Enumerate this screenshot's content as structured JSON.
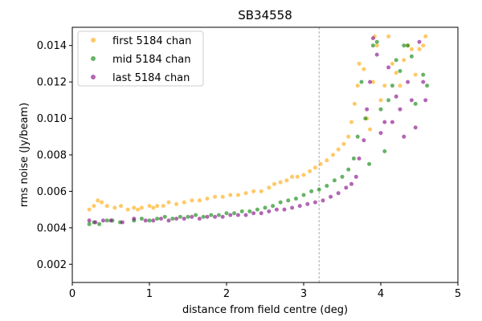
{
  "chart_data": {
    "type": "scatter",
    "title": "SB34558",
    "xlabel": "distance from field centre (deg)",
    "ylabel": "rms noise (Jy/beam)",
    "xlim": [
      0,
      5
    ],
    "ylim": [
      0.001,
      0.015
    ],
    "xticks": [
      "0",
      "1",
      "2",
      "3",
      "4",
      "5"
    ],
    "yticks": [
      "0.002",
      "0.004",
      "0.006",
      "0.008",
      "0.010",
      "0.012",
      "0.014"
    ],
    "grid": false,
    "legend_position": "upper-left",
    "vline": {
      "x": 3.2,
      "style": "dashed",
      "color": "#aaaaaa"
    },
    "series": [
      {
        "name": "first 5184 chan",
        "color": "#FFA500",
        "points": [
          [
            0.22,
            0.005
          ],
          [
            0.28,
            0.0052
          ],
          [
            0.33,
            0.0055
          ],
          [
            0.38,
            0.0054
          ],
          [
            0.45,
            0.0052
          ],
          [
            0.55,
            0.0051
          ],
          [
            0.63,
            0.0052
          ],
          [
            0.72,
            0.005
          ],
          [
            0.8,
            0.0051
          ],
          [
            0.85,
            0.005
          ],
          [
            0.9,
            0.0051
          ],
          [
            1.0,
            0.0052
          ],
          [
            1.05,
            0.0051
          ],
          [
            1.1,
            0.0052
          ],
          [
            1.18,
            0.0052
          ],
          [
            1.25,
            0.0054
          ],
          [
            1.35,
            0.0053
          ],
          [
            1.45,
            0.0054
          ],
          [
            1.55,
            0.0055
          ],
          [
            1.65,
            0.0055
          ],
          [
            1.75,
            0.0056
          ],
          [
            1.85,
            0.0057
          ],
          [
            1.95,
            0.0057
          ],
          [
            2.05,
            0.0058
          ],
          [
            2.15,
            0.0058
          ],
          [
            2.25,
            0.0059
          ],
          [
            2.35,
            0.006
          ],
          [
            2.45,
            0.006
          ],
          [
            2.55,
            0.0062
          ],
          [
            2.62,
            0.0064
          ],
          [
            2.7,
            0.0065
          ],
          [
            2.78,
            0.0066
          ],
          [
            2.85,
            0.0068
          ],
          [
            2.92,
            0.0068
          ],
          [
            3.0,
            0.0069
          ],
          [
            3.08,
            0.0071
          ],
          [
            3.15,
            0.0073
          ],
          [
            3.22,
            0.0075
          ],
          [
            3.3,
            0.0077
          ],
          [
            3.38,
            0.008
          ],
          [
            3.45,
            0.0083
          ],
          [
            3.52,
            0.0086
          ],
          [
            3.58,
            0.009
          ],
          [
            3.62,
            0.0098
          ],
          [
            3.66,
            0.0108
          ],
          [
            3.7,
            0.0118
          ],
          [
            3.72,
            0.013
          ],
          [
            3.78,
            0.0127
          ],
          [
            3.82,
            0.01
          ],
          [
            3.86,
            0.0094
          ],
          [
            3.9,
            0.012
          ],
          [
            3.92,
            0.0145
          ],
          [
            3.95,
            0.014
          ],
          [
            4.0,
            0.011
          ],
          [
            4.05,
            0.0118
          ],
          [
            4.1,
            0.0145
          ],
          [
            4.15,
            0.013
          ],
          [
            4.2,
            0.0125
          ],
          [
            4.25,
            0.0118
          ],
          [
            4.3,
            0.0132
          ],
          [
            4.35,
            0.014
          ],
          [
            4.4,
            0.0138
          ],
          [
            4.45,
            0.0124
          ],
          [
            4.5,
            0.0138
          ],
          [
            4.55,
            0.014
          ],
          [
            4.58,
            0.0145
          ]
        ]
      },
      {
        "name": "mid 5184 chan",
        "color": "#008000",
        "points": [
          [
            0.22,
            0.0042
          ],
          [
            0.28,
            0.0043
          ],
          [
            0.35,
            0.0042
          ],
          [
            0.45,
            0.0044
          ],
          [
            0.52,
            0.0044
          ],
          [
            0.62,
            0.0043
          ],
          [
            0.8,
            0.0044
          ],
          [
            0.9,
            0.0045
          ],
          [
            1.0,
            0.0044
          ],
          [
            1.1,
            0.0045
          ],
          [
            1.2,
            0.0046
          ],
          [
            1.3,
            0.0045
          ],
          [
            1.4,
            0.0046
          ],
          [
            1.5,
            0.0046
          ],
          [
            1.6,
            0.0047
          ],
          [
            1.7,
            0.0046
          ],
          [
            1.8,
            0.0047
          ],
          [
            1.9,
            0.0047
          ],
          [
            2.0,
            0.0048
          ],
          [
            2.1,
            0.0048
          ],
          [
            2.2,
            0.0049
          ],
          [
            2.3,
            0.0049
          ],
          [
            2.4,
            0.005
          ],
          [
            2.5,
            0.0051
          ],
          [
            2.6,
            0.0052
          ],
          [
            2.7,
            0.0054
          ],
          [
            2.8,
            0.0055
          ],
          [
            2.9,
            0.0056
          ],
          [
            3.0,
            0.0058
          ],
          [
            3.1,
            0.006
          ],
          [
            3.2,
            0.0061
          ],
          [
            3.3,
            0.0063
          ],
          [
            3.4,
            0.0066
          ],
          [
            3.5,
            0.0068
          ],
          [
            3.58,
            0.0072
          ],
          [
            3.65,
            0.0078
          ],
          [
            3.7,
            0.009
          ],
          [
            3.75,
            0.012
          ],
          [
            3.8,
            0.01
          ],
          [
            3.85,
            0.0075
          ],
          [
            3.9,
            0.014
          ],
          [
            3.95,
            0.0142
          ],
          [
            4.0,
            0.0105
          ],
          [
            4.05,
            0.0082
          ],
          [
            4.1,
            0.011
          ],
          [
            4.15,
            0.0118
          ],
          [
            4.2,
            0.0132
          ],
          [
            4.25,
            0.0126
          ],
          [
            4.3,
            0.014
          ],
          [
            4.35,
            0.014
          ],
          [
            4.4,
            0.0134
          ],
          [
            4.45,
            0.0108
          ],
          [
            4.55,
            0.0124
          ],
          [
            4.6,
            0.0118
          ]
        ]
      },
      {
        "name": "last 5184 chan",
        "color": "#800080",
        "points": [
          [
            0.22,
            0.0044
          ],
          [
            0.3,
            0.0043
          ],
          [
            0.4,
            0.0044
          ],
          [
            0.5,
            0.0044
          ],
          [
            0.65,
            0.0043
          ],
          [
            0.8,
            0.0045
          ],
          [
            0.95,
            0.0044
          ],
          [
            1.05,
            0.0044
          ],
          [
            1.15,
            0.0045
          ],
          [
            1.25,
            0.0044
          ],
          [
            1.35,
            0.0045
          ],
          [
            1.45,
            0.0045
          ],
          [
            1.55,
            0.0046
          ],
          [
            1.65,
            0.0045
          ],
          [
            1.75,
            0.0046
          ],
          [
            1.85,
            0.0046
          ],
          [
            1.95,
            0.0046
          ],
          [
            2.05,
            0.0047
          ],
          [
            2.15,
            0.0047
          ],
          [
            2.25,
            0.0047
          ],
          [
            2.35,
            0.0048
          ],
          [
            2.45,
            0.0048
          ],
          [
            2.55,
            0.0049
          ],
          [
            2.65,
            0.005
          ],
          [
            2.75,
            0.005
          ],
          [
            2.85,
            0.0051
          ],
          [
            2.95,
            0.0052
          ],
          [
            3.05,
            0.0053
          ],
          [
            3.15,
            0.0054
          ],
          [
            3.25,
            0.0055
          ],
          [
            3.35,
            0.0057
          ],
          [
            3.45,
            0.0059
          ],
          [
            3.55,
            0.0062
          ],
          [
            3.62,
            0.0064
          ],
          [
            3.68,
            0.0068
          ],
          [
            3.72,
            0.0078
          ],
          [
            3.78,
            0.0088
          ],
          [
            3.82,
            0.0105
          ],
          [
            3.86,
            0.012
          ],
          [
            3.9,
            0.0144
          ],
          [
            3.95,
            0.0135
          ],
          [
            4.0,
            0.0092
          ],
          [
            4.05,
            0.0098
          ],
          [
            4.1,
            0.0128
          ],
          [
            4.15,
            0.0098
          ],
          [
            4.2,
            0.0112
          ],
          [
            4.25,
            0.0105
          ],
          [
            4.3,
            0.009
          ],
          [
            4.35,
            0.012
          ],
          [
            4.4,
            0.011
          ],
          [
            4.45,
            0.0095
          ],
          [
            4.5,
            0.0142
          ],
          [
            4.55,
            0.012
          ],
          [
            4.58,
            0.011
          ]
        ]
      }
    ]
  }
}
